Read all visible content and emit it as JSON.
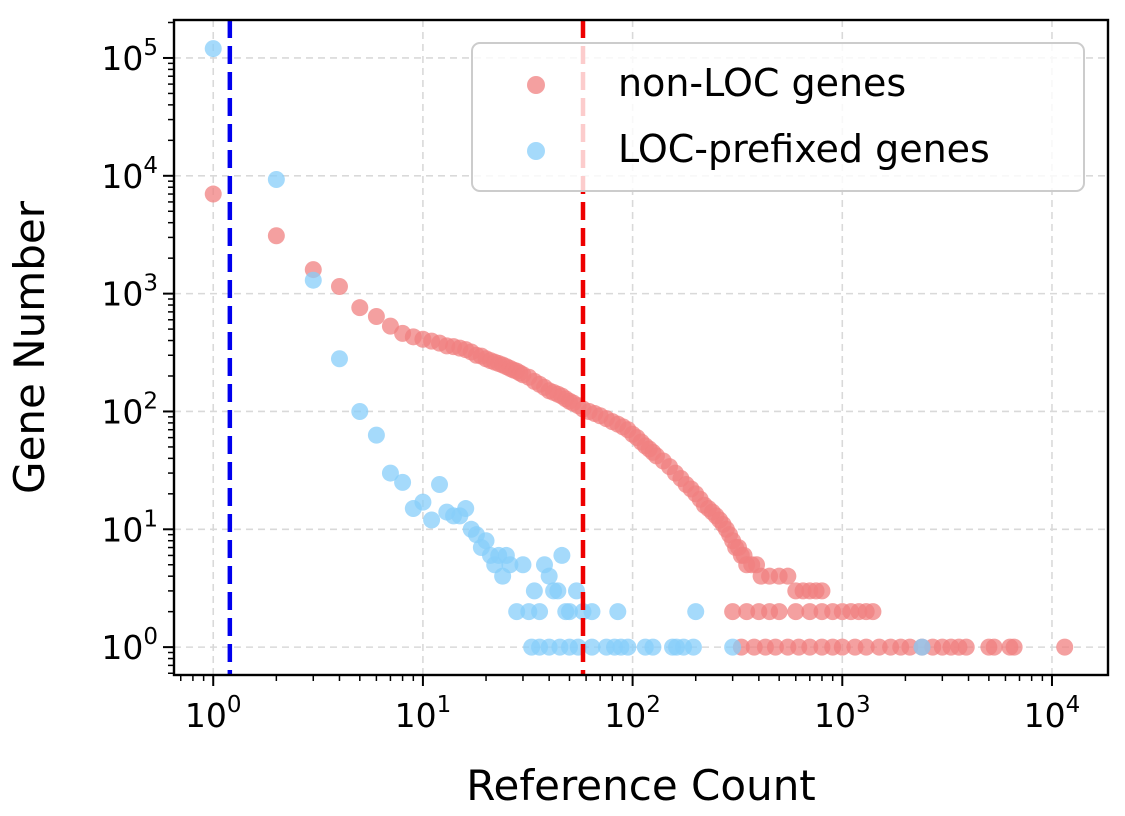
{
  "chart_data": {
    "type": "scatter",
    "xscale": "log",
    "yscale": "log",
    "xlabel": "Reference Count",
    "ylabel": "Gene Number",
    "xlim": [
      0.65,
      18500
    ],
    "ylim": [
      0.58,
      210000
    ],
    "grid": true,
    "legend_position": "top-right",
    "x_ticks": [
      {
        "value": 1,
        "base": "10",
        "exp": "0"
      },
      {
        "value": 10,
        "base": "10",
        "exp": "1"
      },
      {
        "value": 100,
        "base": "10",
        "exp": "2"
      },
      {
        "value": 1000,
        "base": "10",
        "exp": "3"
      },
      {
        "value": 10000,
        "base": "10",
        "exp": "4"
      }
    ],
    "y_ticks": [
      {
        "value": 1,
        "base": "10",
        "exp": "0"
      },
      {
        "value": 10,
        "base": "10",
        "exp": "1"
      },
      {
        "value": 100,
        "base": "10",
        "exp": "2"
      },
      {
        "value": 1000,
        "base": "10",
        "exp": "3"
      },
      {
        "value": 10000,
        "base": "10",
        "exp": "4"
      },
      {
        "value": 100000,
        "base": "10",
        "exp": "5"
      }
    ],
    "vlines": [
      {
        "x": 1.2,
        "color": "#0000ee"
      },
      {
        "x": 58,
        "color": "#ee0000"
      }
    ],
    "series": [
      {
        "name": "non-LOC genes",
        "color": "#f08080",
        "points": [
          [
            1,
            7000
          ],
          [
            2,
            3100
          ],
          [
            3,
            1600
          ],
          [
            4,
            1150
          ],
          [
            5,
            760
          ],
          [
            6,
            640
          ],
          [
            7,
            530
          ],
          [
            8,
            460
          ],
          [
            9,
            430
          ],
          [
            10,
            410
          ],
          [
            11,
            395
          ],
          [
            12,
            380
          ],
          [
            13,
            360
          ],
          [
            14,
            355
          ],
          [
            15,
            345
          ],
          [
            16,
            335
          ],
          [
            17,
            320
          ],
          [
            18,
            300
          ],
          [
            19,
            295
          ],
          [
            20,
            280
          ],
          [
            21,
            270
          ],
          [
            22,
            262
          ],
          [
            23,
            255
          ],
          [
            24,
            248
          ],
          [
            25,
            240
          ],
          [
            26,
            232
          ],
          [
            27,
            225
          ],
          [
            28,
            220
          ],
          [
            29,
            212
          ],
          [
            30,
            205
          ],
          [
            32,
            195
          ],
          [
            34,
            180
          ],
          [
            36,
            170
          ],
          [
            38,
            160
          ],
          [
            40,
            150
          ],
          [
            42,
            145
          ],
          [
            44,
            140
          ],
          [
            46,
            135
          ],
          [
            48,
            128
          ],
          [
            50,
            122
          ],
          [
            52,
            118
          ],
          [
            55,
            112
          ],
          [
            58,
            105
          ],
          [
            62,
            100
          ],
          [
            66,
            96
          ],
          [
            70,
            92
          ],
          [
            75,
            87
          ],
          [
            80,
            82
          ],
          [
            85,
            78
          ],
          [
            90,
            74
          ],
          [
            95,
            70
          ],
          [
            100,
            64
          ],
          [
            105,
            60
          ],
          [
            110,
            55
          ],
          [
            115,
            51
          ],
          [
            120,
            48
          ],
          [
            125,
            45
          ],
          [
            130,
            42
          ],
          [
            140,
            38
          ],
          [
            150,
            34
          ],
          [
            160,
            30
          ],
          [
            170,
            27
          ],
          [
            180,
            24
          ],
          [
            190,
            22
          ],
          [
            200,
            20
          ],
          [
            210,
            18
          ],
          [
            220,
            16
          ],
          [
            230,
            15
          ],
          [
            240,
            14
          ],
          [
            250,
            13
          ],
          [
            260,
            12
          ],
          [
            270,
            11
          ],
          [
            280,
            10
          ],
          [
            290,
            9
          ],
          [
            300,
            8
          ],
          [
            310,
            7
          ],
          [
            320,
            7
          ],
          [
            330,
            6
          ],
          [
            340,
            6
          ],
          [
            350,
            5
          ],
          [
            370,
            5
          ],
          [
            390,
            5
          ],
          [
            410,
            4
          ],
          [
            450,
            4
          ],
          [
            500,
            4
          ],
          [
            550,
            4
          ],
          [
            600,
            3
          ],
          [
            650,
            3
          ],
          [
            700,
            3
          ],
          [
            750,
            3
          ],
          [
            800,
            3
          ],
          [
            300,
            2
          ],
          [
            350,
            2
          ],
          [
            400,
            2
          ],
          [
            450,
            2
          ],
          [
            500,
            2
          ],
          [
            600,
            2
          ],
          [
            700,
            2
          ],
          [
            800,
            2
          ],
          [
            900,
            2
          ],
          [
            1000,
            2
          ],
          [
            1100,
            2
          ],
          [
            1200,
            2
          ],
          [
            1300,
            2
          ],
          [
            1400,
            2
          ],
          [
            330,
            1
          ],
          [
            380,
            1
          ],
          [
            430,
            1
          ],
          [
            480,
            1
          ],
          [
            550,
            1
          ],
          [
            620,
            1
          ],
          [
            700,
            1
          ],
          [
            800,
            1
          ],
          [
            900,
            1
          ],
          [
            1000,
            1
          ],
          [
            1150,
            1
          ],
          [
            1300,
            1
          ],
          [
            1500,
            1
          ],
          [
            1700,
            1
          ],
          [
            1900,
            1
          ],
          [
            2100,
            1
          ],
          [
            2400,
            1
          ],
          [
            2700,
            1
          ],
          [
            3000,
            1
          ],
          [
            3300,
            1
          ],
          [
            3600,
            1
          ],
          [
            3900,
            1
          ],
          [
            5000,
            1
          ],
          [
            5300,
            1
          ],
          [
            6300,
            1
          ],
          [
            6600,
            1
          ],
          [
            11500,
            1
          ]
        ]
      },
      {
        "name": "LOC-prefixed genes",
        "color": "#87cefa",
        "points": [
          [
            1,
            120000
          ],
          [
            2,
            9300
          ],
          [
            3,
            1300
          ],
          [
            4,
            280
          ],
          [
            5,
            100
          ],
          [
            6,
            63
          ],
          [
            7,
            30
          ],
          [
            8,
            25
          ],
          [
            9,
            15
          ],
          [
            10,
            17
          ],
          [
            11,
            12
          ],
          [
            12,
            24
          ],
          [
            13,
            14
          ],
          [
            14,
            13
          ],
          [
            15,
            13
          ],
          [
            16,
            15
          ],
          [
            17,
            10
          ],
          [
            18,
            9
          ],
          [
            19,
            7
          ],
          [
            20,
            8
          ],
          [
            21,
            6
          ],
          [
            22,
            5
          ],
          [
            23,
            6
          ],
          [
            24,
            4
          ],
          [
            25,
            6
          ],
          [
            26,
            5
          ],
          [
            28,
            2
          ],
          [
            30,
            5
          ],
          [
            32,
            2
          ],
          [
            34,
            3
          ],
          [
            36,
            2
          ],
          [
            38,
            5
          ],
          [
            40,
            4
          ],
          [
            42,
            3
          ],
          [
            44,
            3
          ],
          [
            46,
            6
          ],
          [
            48,
            2
          ],
          [
            50,
            2
          ],
          [
            54,
            3
          ],
          [
            58,
            2
          ],
          [
            64,
            2
          ],
          [
            85,
            2
          ],
          [
            200,
            2
          ],
          [
            33,
            1
          ],
          [
            36,
            1
          ],
          [
            40,
            1
          ],
          [
            45,
            1
          ],
          [
            50,
            1
          ],
          [
            55,
            1
          ],
          [
            64,
            1
          ],
          [
            75,
            1
          ],
          [
            82,
            1
          ],
          [
            88,
            1
          ],
          [
            95,
            1
          ],
          [
            115,
            1
          ],
          [
            125,
            1
          ],
          [
            155,
            1
          ],
          [
            162,
            1
          ],
          [
            175,
            1
          ],
          [
            195,
            1
          ],
          [
            300,
            1
          ],
          [
            2400,
            1
          ]
        ]
      }
    ]
  }
}
